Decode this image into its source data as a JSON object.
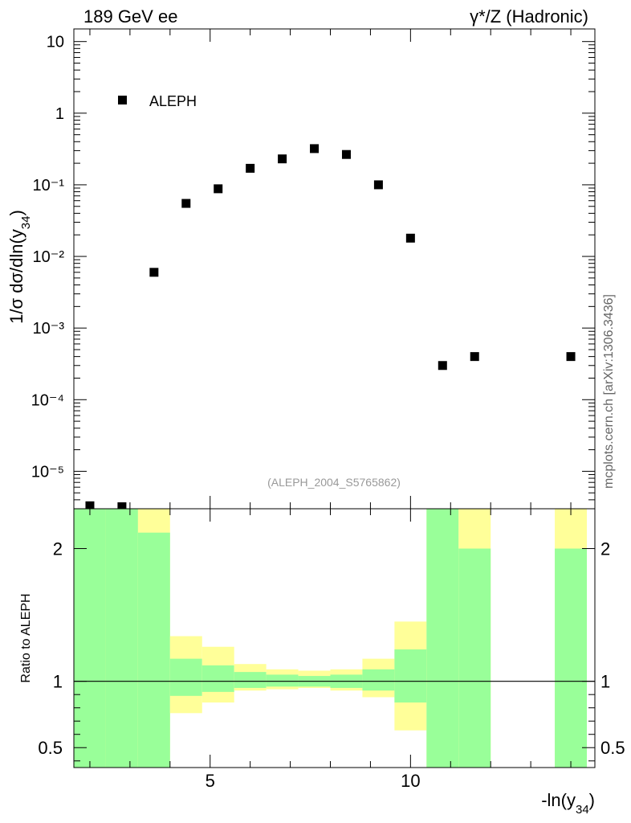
{
  "header": {
    "left_label": "189 GeV ee",
    "right_label": "γ*/Z (Hadronic)"
  },
  "side_label": "mcplots.cern.ch [arXiv:1306.3436]",
  "analysis_label": "(ALEPH_2004_S5765862)",
  "colors": {
    "marker": "#000000",
    "band_inner": "#99ff99",
    "band_outer": "#ffff99",
    "reference_line": "#000000"
  },
  "chart_data": [
    {
      "type": "scatter",
      "ylabel": "1/σ dσ/dln(y34)",
      "y_scale": "log",
      "xlim": [
        1.6,
        14.6
      ],
      "ylim": [
        3e-06,
        15
      ],
      "y_tick_labels": [
        "10⁻⁵",
        "10⁻⁴",
        "10⁻³",
        "10⁻²",
        "10⁻¹",
        "1",
        "10"
      ],
      "legend": {
        "position": "top-left"
      },
      "series": [
        {
          "name": "ALEPH",
          "x": [
            2.0,
            2.8,
            3.6,
            4.4,
            5.2,
            6.0,
            6.8,
            7.6,
            8.4,
            9.2,
            10.0,
            10.8,
            11.6,
            14.0
          ],
          "y": [
            3.3e-06,
            3.2e-06,
            0.006,
            0.055,
            0.088,
            0.17,
            0.23,
            0.32,
            0.265,
            0.1,
            0.018,
            0.0003,
            0.0004,
            0.0004
          ]
        }
      ]
    },
    {
      "type": "area",
      "ylabel": "Ratio to ALEPH",
      "xlabel": "-ln(y34)",
      "xlim": [
        1.6,
        14.6
      ],
      "ylim": [
        0.35,
        2.3
      ],
      "x_ticks": [
        5,
        10
      ],
      "y_ticks": [
        0.5,
        1,
        2
      ],
      "reference_value": 1,
      "bins": [
        {
          "x_low": 1.6,
          "x_high": 2.4,
          "inner": [
            0.35,
            2.3
          ],
          "outer": [
            0.35,
            2.3
          ]
        },
        {
          "x_low": 2.4,
          "x_high": 3.2,
          "inner": [
            0.35,
            2.3
          ],
          "outer": [
            0.35,
            2.3
          ]
        },
        {
          "x_low": 3.2,
          "x_high": 4.0,
          "inner": [
            0.35,
            2.12
          ],
          "outer": [
            0.35,
            2.3
          ]
        },
        {
          "x_low": 4.0,
          "x_high": 4.8,
          "inner": [
            0.89,
            1.17
          ],
          "outer": [
            0.76,
            1.34
          ]
        },
        {
          "x_low": 4.8,
          "x_high": 5.6,
          "inner": [
            0.92,
            1.12
          ],
          "outer": [
            0.84,
            1.26
          ]
        },
        {
          "x_low": 5.6,
          "x_high": 6.4,
          "inner": [
            0.95,
            1.07
          ],
          "outer": [
            0.93,
            1.13
          ]
        },
        {
          "x_low": 6.4,
          "x_high": 7.2,
          "inner": [
            0.96,
            1.05
          ],
          "outer": [
            0.94,
            1.09
          ]
        },
        {
          "x_low": 7.2,
          "x_high": 8.0,
          "inner": [
            0.96,
            1.04
          ],
          "outer": [
            0.95,
            1.08
          ]
        },
        {
          "x_low": 8.0,
          "x_high": 8.8,
          "inner": [
            0.95,
            1.05
          ],
          "outer": [
            0.93,
            1.09
          ]
        },
        {
          "x_low": 8.8,
          "x_high": 9.6,
          "inner": [
            0.93,
            1.09
          ],
          "outer": [
            0.88,
            1.17
          ]
        },
        {
          "x_low": 9.6,
          "x_high": 10.4,
          "inner": [
            0.84,
            1.24
          ],
          "outer": [
            0.63,
            1.45
          ]
        },
        {
          "x_low": 10.4,
          "x_high": 11.2,
          "inner": [
            0.35,
            2.3
          ],
          "outer": [
            0.35,
            2.3
          ]
        },
        {
          "x_low": 11.2,
          "x_high": 12.0,
          "inner": [
            0.35,
            2.0
          ],
          "outer": [
            0.35,
            2.3
          ]
        },
        {
          "x_low": 13.6,
          "x_high": 14.4,
          "inner": [
            0.35,
            2.0
          ],
          "outer": [
            0.35,
            2.3
          ]
        }
      ]
    }
  ]
}
